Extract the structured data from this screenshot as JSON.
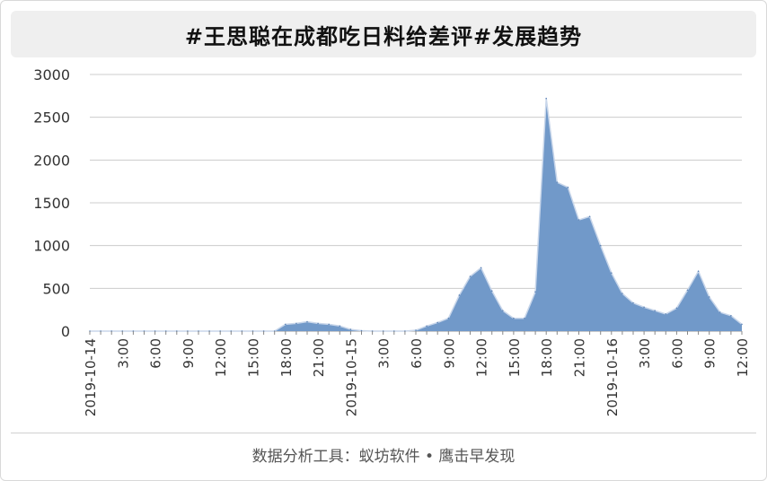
{
  "title": "#王思聪在成都吃日料给差评#发展趋势",
  "footer": "数据分析工具：蚁坊软件 • 鹰击早发现",
  "colors": {
    "area_fill": "#7199c9",
    "area_stroke": "#5b82b5",
    "grid": "#cccccc",
    "text": "#333333"
  },
  "chart_data": {
    "type": "area",
    "title": "#王思聪在成都吃日料给差评#发展趋势",
    "xlabel": "",
    "ylabel": "",
    "ylim": [
      0,
      3000
    ],
    "yticks": [
      0,
      500,
      1000,
      1500,
      2000,
      2500,
      3000
    ],
    "xticks": [
      "2019-10-14",
      "3:00",
      "6:00",
      "9:00",
      "12:00",
      "15:00",
      "18:00",
      "21:00",
      "2019-10-15",
      "3:00",
      "6:00",
      "9:00",
      "12:00",
      "15:00",
      "18:00",
      "21:00",
      "2019-10-16",
      "3:00",
      "6:00",
      "9:00",
      "12:00"
    ],
    "x_hours": [
      0,
      1,
      2,
      3,
      4,
      5,
      6,
      7,
      8,
      9,
      10,
      11,
      12,
      13,
      14,
      15,
      16,
      17,
      18,
      19,
      20,
      21,
      22,
      23,
      24,
      25,
      26,
      27,
      28,
      29,
      30,
      31,
      32,
      33,
      34,
      35,
      36,
      37,
      38,
      39,
      40,
      41,
      42,
      43,
      44,
      45,
      46,
      47,
      48,
      49,
      50,
      51,
      52,
      53,
      54,
      55,
      56,
      57,
      58,
      59,
      60
    ],
    "values": [
      0,
      0,
      0,
      0,
      0,
      0,
      0,
      0,
      0,
      0,
      0,
      0,
      0,
      0,
      0,
      0,
      0,
      0,
      80,
      90,
      110,
      90,
      80,
      60,
      20,
      5,
      0,
      0,
      0,
      0,
      10,
      60,
      100,
      150,
      420,
      640,
      740,
      470,
      240,
      150,
      150,
      460,
      2720,
      1740,
      1680,
      1300,
      1340,
      1000,
      680,
      440,
      330,
      280,
      240,
      200,
      270,
      480,
      700,
      400,
      220,
      180,
      80
    ],
    "grid": true,
    "legend": "none"
  }
}
